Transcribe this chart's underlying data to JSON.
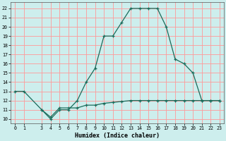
{
  "xlabel": "Humidex (Indice chaleur)",
  "background_color": "#cdeeed",
  "line_color": "#1a6b5a",
  "grid_color": "#ff9999",
  "xlim": [
    -0.5,
    23.5
  ],
  "ylim": [
    9.5,
    22.7
  ],
  "xticks": [
    0,
    1,
    3,
    4,
    5,
    6,
    7,
    8,
    9,
    10,
    11,
    12,
    13,
    14,
    15,
    16,
    17,
    18,
    19,
    20,
    21,
    22,
    23
  ],
  "yticks": [
    10,
    11,
    12,
    13,
    14,
    15,
    16,
    17,
    18,
    19,
    20,
    21,
    22
  ],
  "line1_x": [
    0,
    1,
    3,
    4,
    5,
    6,
    7,
    8,
    9,
    10,
    11,
    12,
    13,
    14,
    15,
    16,
    17,
    18,
    19,
    20,
    21,
    22,
    23
  ],
  "line1_y": [
    13,
    13,
    11,
    10,
    11,
    11,
    12,
    14,
    15.5,
    19,
    19,
    20.5,
    22,
    22,
    22,
    22,
    20,
    16.5,
    16,
    15,
    12,
    12,
    12
  ],
  "line2_x": [
    3,
    4,
    5,
    6,
    7,
    8,
    9,
    10,
    11,
    12,
    13,
    14,
    15,
    16,
    17,
    18,
    19,
    20,
    21,
    22,
    23
  ],
  "line2_y": [
    11,
    10.2,
    11.2,
    11.2,
    11.2,
    11.5,
    11.5,
    11.7,
    11.8,
    11.9,
    12,
    12,
    12,
    12,
    12,
    12,
    12,
    12,
    12,
    12,
    12
  ]
}
